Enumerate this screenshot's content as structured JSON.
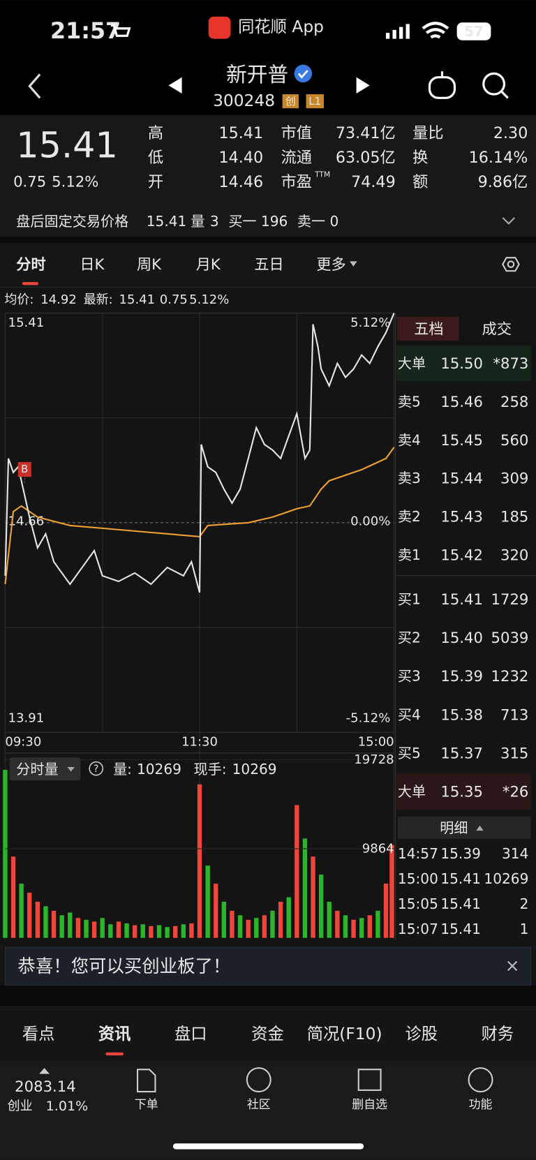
{
  "status": {
    "time": "21:57",
    "app": "同花顺 App",
    "battery": "57"
  },
  "header": {
    "name": "新开普",
    "code": "300248",
    "badges": [
      "创",
      "L1"
    ]
  },
  "colors": {
    "up": "#f0453a",
    "down": "#2bb52b",
    "flat": "#e8e8e8"
  },
  "quote": {
    "price": "15.41",
    "change": "0.75",
    "percent": "5.12%",
    "stats": [
      [
        {
          "label": "高",
          "value": "15.41",
          "tone": "up"
        },
        {
          "label": "市值",
          "value": "73.41亿",
          "tone": "flat"
        },
        {
          "label": "量比",
          "value": "2.30",
          "tone": "up"
        }
      ],
      [
        {
          "label": "低",
          "value": "14.40",
          "tone": "down"
        },
        {
          "label": "流通",
          "value": "63.05亿",
          "tone": "flat"
        },
        {
          "label": "换",
          "value": "16.14%",
          "tone": "flat"
        }
      ],
      [
        {
          "label": "开",
          "value": "14.46",
          "tone": "down"
        },
        {
          "label": "市盈",
          "sup": "TTM",
          "value": "74.49",
          "tone": "flat"
        },
        {
          "label": "额",
          "value": "9.86亿",
          "tone": "flat"
        }
      ]
    ]
  },
  "after_hours": {
    "label": "盘后固定交易价格",
    "price": "15.41",
    "volume_label": "量",
    "volume": "3",
    "bid": "买一 196",
    "ask": "卖一 0"
  },
  "tabs": [
    "分时",
    "日K",
    "周K",
    "月K",
    "五日",
    "更多"
  ],
  "intraday": {
    "type": "line",
    "info": {
      "avg_label": "均价:",
      "avg": "14.92",
      "last_label": "最新:",
      "last": "15.41",
      "change": "0.75",
      "percent": "5.12%"
    },
    "ylim": [
      13.91,
      15.41
    ],
    "yticks": [
      13.91,
      14.66,
      15.41
    ],
    "pct_ticks": [
      {
        "value": 15.41,
        "label": "5.12%"
      },
      {
        "value": 14.66,
        "label": "0.00%"
      },
      {
        "value": 13.91,
        "label": "-5.12%"
      }
    ],
    "xlim": [
      0,
      240
    ],
    "xticks": [
      {
        "value": 0,
        "label": "09:30"
      },
      {
        "value": 120,
        "label": "11:30"
      },
      {
        "value": 240,
        "label": "15:00"
      }
    ],
    "price": {
      "color": "#e6e6e6",
      "x": [
        0,
        2,
        5,
        8,
        10,
        15,
        20,
        25,
        30,
        35,
        40,
        50,
        55,
        60,
        70,
        80,
        90,
        100,
        110,
        115,
        120,
        121,
        125,
        130,
        135,
        140,
        145,
        150,
        155,
        160,
        165,
        170,
        175,
        180,
        185,
        188,
        190,
        193,
        195,
        200,
        205,
        210,
        215,
        220,
        225,
        230,
        235,
        240
      ],
      "values": [
        14.47,
        14.89,
        14.84,
        14.86,
        14.81,
        14.68,
        14.57,
        14.62,
        14.52,
        14.48,
        14.44,
        14.52,
        14.56,
        14.47,
        14.45,
        14.48,
        14.44,
        14.5,
        14.47,
        14.52,
        14.41,
        14.94,
        14.86,
        14.84,
        14.78,
        14.73,
        14.78,
        14.89,
        15.0,
        14.94,
        14.92,
        14.89,
        14.97,
        15.05,
        14.89,
        14.92,
        15.37,
        15.29,
        15.21,
        15.15,
        15.23,
        15.18,
        15.21,
        15.26,
        15.23,
        15.29,
        15.34,
        15.41
      ]
    },
    "average": {
      "color": "#f0a030",
      "x": [
        0,
        5,
        10,
        20,
        40,
        80,
        120,
        125,
        150,
        165,
        180,
        188,
        195,
        200,
        220,
        235,
        240
      ],
      "values": [
        14.44,
        14.7,
        14.72,
        14.68,
        14.65,
        14.63,
        14.61,
        14.65,
        14.66,
        14.68,
        14.71,
        14.72,
        14.78,
        14.81,
        14.85,
        14.89,
        14.93
      ]
    },
    "marker": {
      "label": "B",
      "x": 12,
      "value": 14.84
    }
  },
  "volume": {
    "type": "bar",
    "label": "分时量",
    "qty_label": "量:",
    "qty": "10269",
    "hand_label": "现手:",
    "hand": "10269",
    "ylim": [
      0,
      19728
    ],
    "yticks": [
      9864,
      19728
    ],
    "x": [
      0,
      5,
      10,
      15,
      20,
      25,
      30,
      35,
      40,
      45,
      50,
      55,
      60,
      65,
      70,
      75,
      80,
      85,
      90,
      95,
      100,
      105,
      110,
      115,
      120,
      125,
      130,
      135,
      140,
      145,
      150,
      155,
      160,
      165,
      170,
      175,
      180,
      185,
      190,
      195,
      200,
      205,
      210,
      215,
      220,
      225,
      230,
      235,
      240
    ],
    "values": [
      18600,
      9000,
      6000,
      5000,
      4000,
      3500,
      3000,
      2500,
      2800,
      2200,
      2000,
      1800,
      2200,
      1500,
      1800,
      1600,
      1400,
      1500,
      1300,
      1400,
      1200,
      1300,
      1500,
      1600,
      17000,
      8000,
      6000,
      4000,
      3000,
      2500,
      2000,
      2200,
      2500,
      3000,
      4000,
      4500,
      14700,
      11000,
      9000,
      7000,
      4000,
      3000,
      2500,
      2000,
      2200,
      2500,
      3000,
      6000,
      10269
    ],
    "directions": [
      "down",
      "up",
      "down",
      "up",
      "up",
      "down",
      "up",
      "down",
      "down",
      "up",
      "down",
      "up",
      "down",
      "down",
      "up",
      "down",
      "up",
      "down",
      "up",
      "down",
      "down",
      "up",
      "down",
      "up",
      "up",
      "down",
      "up",
      "down",
      "up",
      "down",
      "up",
      "down",
      "up",
      "down",
      "up",
      "down",
      "up",
      "down",
      "up",
      "down",
      "down",
      "up",
      "down",
      "up",
      "down",
      "up",
      "down",
      "up",
      "up"
    ]
  },
  "order_book": {
    "tabs": [
      "五档",
      "成交"
    ],
    "big_top": {
      "label": "大单",
      "price": "15.50",
      "volume": "*873"
    },
    "asks": [
      {
        "label": "卖5",
        "price": "15.46",
        "volume": "258"
      },
      {
        "label": "卖4",
        "price": "15.45",
        "volume": "560"
      },
      {
        "label": "卖3",
        "price": "15.44",
        "volume": "309"
      },
      {
        "label": "卖2",
        "price": "15.43",
        "volume": "185"
      },
      {
        "label": "卖1",
        "price": "15.42",
        "volume": "320"
      }
    ],
    "bids": [
      {
        "label": "买1",
        "price": "15.41",
        "volume": "1729"
      },
      {
        "label": "买2",
        "price": "15.40",
        "volume": "5039"
      },
      {
        "label": "买3",
        "price": "15.39",
        "volume": "1232"
      },
      {
        "label": "买4",
        "price": "15.38",
        "volume": "713"
      },
      {
        "label": "买5",
        "price": "15.37",
        "volume": "315"
      }
    ],
    "big_bottom": {
      "label": "大单",
      "price": "15.35",
      "volume": "*26"
    }
  },
  "trades": {
    "title": "明细",
    "rows": [
      {
        "time": "14:57",
        "price": "15.39",
        "volume": "314",
        "tone": "down"
      },
      {
        "time": "15:00",
        "price": "15.41",
        "volume": "10269",
        "tone": "up"
      },
      {
        "time": "15:05",
        "price": "15.41",
        "volume": "2",
        "tone": "down"
      },
      {
        "time": "15:07",
        "price": "15.41",
        "volume": "1",
        "tone": "down"
      }
    ]
  },
  "notice": "恭喜！您可以买创业板了！",
  "bottom_tabs": [
    "看点",
    "资讯",
    "盘口",
    "资金",
    "简况(F10)",
    "诊股",
    "财务"
  ],
  "footer": {
    "index": "2083.14",
    "index_name": "创业",
    "index_change": "1.01%",
    "buttons": [
      "下单",
      "社区",
      "删自选",
      "功能"
    ]
  }
}
